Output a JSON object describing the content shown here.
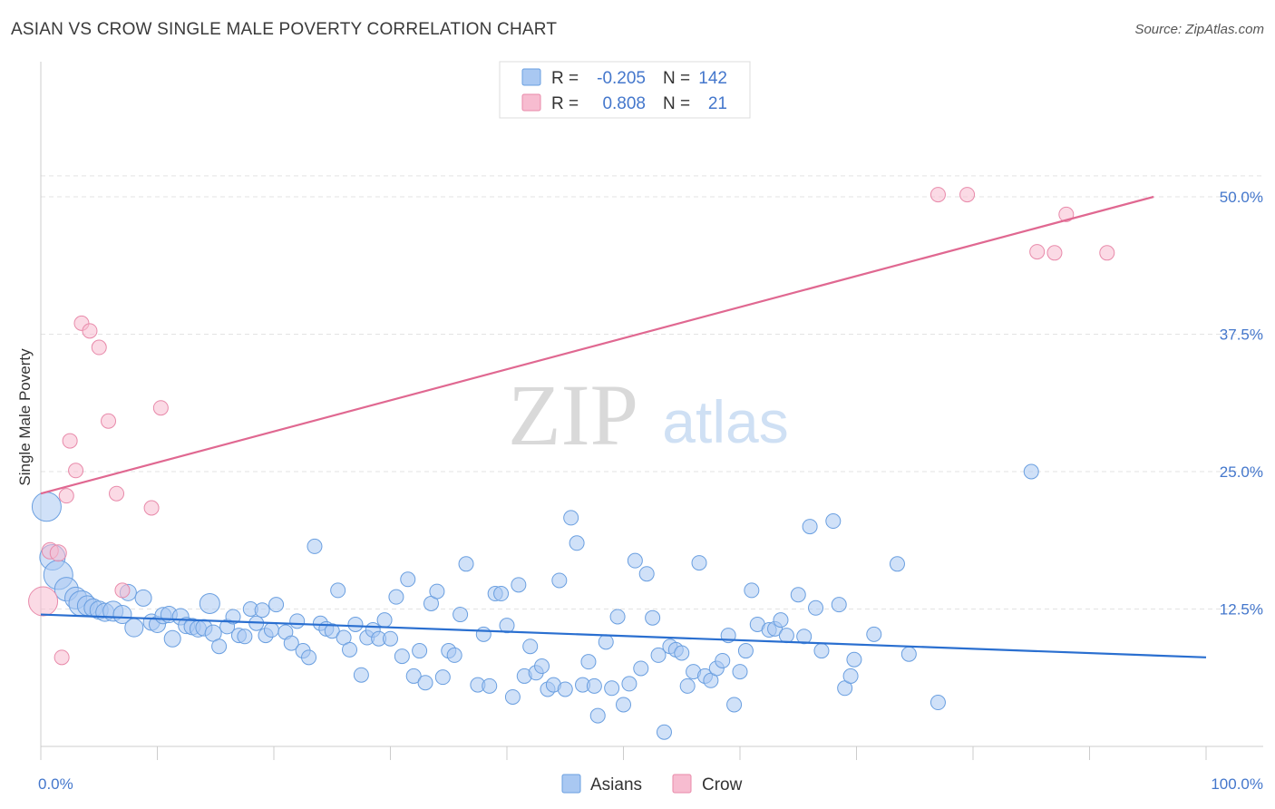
{
  "header": {
    "title": "ASIAN VS CROW SINGLE MALE POVERTY CORRELATION CHART",
    "source": "Source: ZipAtlas.com"
  },
  "watermark": {
    "zip": "ZIP",
    "atlas": "atlas"
  },
  "colors": {
    "asian_fill": "#a9c8f2",
    "asian_stroke": "#6a9fe0",
    "asian_line": "#2a6fd0",
    "crow_fill": "#f7bcd0",
    "crow_stroke": "#e88aaa",
    "crow_line": "#e06891",
    "tick_label": "#4477cc"
  },
  "chart_data": {
    "type": "scatter",
    "ylabel": "Single Male Poverty",
    "xlim": [
      0,
      100
    ],
    "ylim": [
      0,
      52
    ],
    "x_tick_labels": [
      "0.0%",
      "100.0%"
    ],
    "y_ticks": [
      12.5,
      25.0,
      37.5,
      50.0
    ],
    "y_tick_labels": [
      "12.5%",
      "25.0%",
      "37.5%",
      "50.0%"
    ],
    "grid": "horizontal-dashed",
    "legend_top": [
      {
        "r_label": "R =",
        "r_value": "-0.205",
        "n_label": "N =",
        "n_value": "142"
      },
      {
        "r_label": "R =",
        "r_value": "0.808",
        "n_label": "N =",
        "n_value": "21"
      }
    ],
    "legend_bottom": [
      "Asians",
      "Crow"
    ],
    "series": [
      {
        "name": "Asians",
        "trend": {
          "x": [
            0,
            100
          ],
          "y": [
            12.0,
            8.1
          ]
        },
        "points": [
          [
            0.5,
            21.8,
            16
          ],
          [
            1.0,
            17.2,
            14
          ],
          [
            1.5,
            15.6,
            16
          ],
          [
            2.2,
            14.3,
            13
          ],
          [
            3.0,
            13.5,
            12
          ],
          [
            3.5,
            13.0,
            14
          ],
          [
            4.0,
            12.8,
            11
          ],
          [
            4.5,
            12.6,
            10
          ],
          [
            5.0,
            12.4,
            10
          ],
          [
            5.5,
            12.2,
            10
          ],
          [
            6.2,
            12.3,
            11
          ],
          [
            7.0,
            12.0,
            10
          ],
          [
            7.5,
            14.0,
            9
          ],
          [
            8.0,
            10.8,
            10
          ],
          [
            8.8,
            13.5,
            9
          ],
          [
            9.5,
            11.3,
            9
          ],
          [
            10.0,
            11.1,
            9
          ],
          [
            10.5,
            11.9,
            9
          ],
          [
            11.0,
            12.0,
            9
          ],
          [
            11.3,
            9.8,
            9
          ],
          [
            12.0,
            11.8,
            9
          ],
          [
            12.5,
            11.0,
            9
          ],
          [
            13.0,
            10.9,
            9
          ],
          [
            13.5,
            10.7,
            9
          ],
          [
            14.0,
            10.8,
            9
          ],
          [
            14.5,
            13.0,
            11
          ],
          [
            14.8,
            10.3,
            9
          ],
          [
            15.3,
            9.1,
            8
          ],
          [
            16.0,
            10.9,
            8
          ],
          [
            16.5,
            11.8,
            8
          ],
          [
            17.0,
            10.1,
            8
          ],
          [
            17.5,
            10.0,
            8
          ],
          [
            18.0,
            12.5,
            8
          ],
          [
            18.5,
            11.2,
            8
          ],
          [
            19.0,
            12.4,
            8
          ],
          [
            19.3,
            10.1,
            8
          ],
          [
            19.8,
            10.6,
            8
          ],
          [
            20.2,
            12.9,
            8
          ],
          [
            21.0,
            10.4,
            8
          ],
          [
            21.5,
            9.4,
            8
          ],
          [
            22.0,
            11.4,
            8
          ],
          [
            22.5,
            8.7,
            8
          ],
          [
            23.0,
            8.1,
            8
          ],
          [
            23.5,
            18.2,
            8
          ],
          [
            24.0,
            11.2,
            8
          ],
          [
            24.5,
            10.7,
            8
          ],
          [
            25.0,
            10.5,
            8
          ],
          [
            25.5,
            14.2,
            8
          ],
          [
            26.0,
            9.9,
            8
          ],
          [
            26.5,
            8.8,
            8
          ],
          [
            27.0,
            11.1,
            8
          ],
          [
            27.5,
            6.5,
            8
          ],
          [
            28.0,
            9.9,
            8
          ],
          [
            28.5,
            10.6,
            8
          ],
          [
            29.0,
            9.8,
            8
          ],
          [
            29.5,
            11.5,
            8
          ],
          [
            30.0,
            9.8,
            8
          ],
          [
            30.5,
            13.6,
            8
          ],
          [
            31.0,
            8.2,
            8
          ],
          [
            31.5,
            15.2,
            8
          ],
          [
            32.0,
            6.4,
            8
          ],
          [
            32.5,
            8.7,
            8
          ],
          [
            33.0,
            5.8,
            8
          ],
          [
            33.5,
            13.0,
            8
          ],
          [
            34.0,
            14.1,
            8
          ],
          [
            34.5,
            6.3,
            8
          ],
          [
            35.0,
            8.7,
            8
          ],
          [
            35.5,
            8.3,
            8
          ],
          [
            36.0,
            12.0,
            8
          ],
          [
            36.5,
            16.6,
            8
          ],
          [
            37.5,
            5.6,
            8
          ],
          [
            38.0,
            10.2,
            8
          ],
          [
            38.5,
            5.5,
            8
          ],
          [
            39.0,
            13.9,
            8
          ],
          [
            39.5,
            13.9,
            8
          ],
          [
            40.0,
            11.0,
            8
          ],
          [
            40.5,
            4.5,
            8
          ],
          [
            41.0,
            14.7,
            8
          ],
          [
            41.5,
            6.4,
            8
          ],
          [
            42.0,
            9.1,
            8
          ],
          [
            42.5,
            6.7,
            8
          ],
          [
            43.0,
            7.3,
            8
          ],
          [
            43.5,
            5.2,
            8
          ],
          [
            44.0,
            5.6,
            8
          ],
          [
            44.5,
            15.1,
            8
          ],
          [
            45.0,
            5.2,
            8
          ],
          [
            45.5,
            20.8,
            8
          ],
          [
            46.0,
            18.5,
            8
          ],
          [
            46.5,
            5.6,
            8
          ],
          [
            47.0,
            7.7,
            8
          ],
          [
            47.5,
            5.5,
            8
          ],
          [
            47.8,
            2.8,
            8
          ],
          [
            48.5,
            9.5,
            8
          ],
          [
            49.0,
            5.3,
            8
          ],
          [
            49.5,
            11.8,
            8
          ],
          [
            50.0,
            3.8,
            8
          ],
          [
            50.5,
            5.7,
            8
          ],
          [
            51.0,
            16.9,
            8
          ],
          [
            51.5,
            7.1,
            8
          ],
          [
            52.0,
            15.7,
            8
          ],
          [
            52.5,
            11.7,
            8
          ],
          [
            53.0,
            8.3,
            8
          ],
          [
            53.5,
            1.3,
            8
          ],
          [
            54.0,
            9.1,
            8
          ],
          [
            54.5,
            8.8,
            8
          ],
          [
            55.0,
            8.5,
            8
          ],
          [
            55.5,
            5.5,
            8
          ],
          [
            56.0,
            6.8,
            8
          ],
          [
            56.5,
            16.7,
            8
          ],
          [
            57.0,
            6.4,
            8
          ],
          [
            57.5,
            6.0,
            8
          ],
          [
            58.0,
            7.1,
            8
          ],
          [
            58.5,
            7.8,
            8
          ],
          [
            59.0,
            10.1,
            8
          ],
          [
            59.5,
            3.8,
            8
          ],
          [
            60.0,
            6.8,
            8
          ],
          [
            60.5,
            8.7,
            8
          ],
          [
            61.0,
            14.2,
            8
          ],
          [
            61.5,
            11.1,
            8
          ],
          [
            62.5,
            10.6,
            8
          ],
          [
            63.0,
            10.7,
            8
          ],
          [
            63.5,
            11.5,
            8
          ],
          [
            64.0,
            10.1,
            8
          ],
          [
            65.0,
            13.8,
            8
          ],
          [
            65.5,
            10.0,
            8
          ],
          [
            66.0,
            20.0,
            8
          ],
          [
            66.5,
            12.6,
            8
          ],
          [
            67.0,
            8.7,
            8
          ],
          [
            68.0,
            20.5,
            8
          ],
          [
            68.5,
            12.9,
            8
          ],
          [
            69.0,
            5.3,
            8
          ],
          [
            69.5,
            6.4,
            8
          ],
          [
            69.8,
            7.9,
            8
          ],
          [
            71.5,
            10.2,
            8
          ],
          [
            73.5,
            16.6,
            8
          ],
          [
            74.5,
            8.4,
            8
          ],
          [
            77.0,
            4.0,
            8
          ],
          [
            85.0,
            25.0,
            8
          ]
        ]
      },
      {
        "name": "Crow",
        "trend": {
          "x": [
            0,
            95.5
          ],
          "y": [
            23.0,
            50.0
          ]
        },
        "points": [
          [
            0.2,
            13.2,
            16
          ],
          [
            0.8,
            17.8,
            9
          ],
          [
            1.5,
            17.6,
            9
          ],
          [
            1.8,
            8.1,
            8
          ],
          [
            2.2,
            22.8,
            8
          ],
          [
            2.5,
            27.8,
            8
          ],
          [
            3.0,
            25.1,
            8
          ],
          [
            3.5,
            38.5,
            8
          ],
          [
            4.2,
            37.8,
            8
          ],
          [
            5.0,
            36.3,
            8
          ],
          [
            5.8,
            29.6,
            8
          ],
          [
            6.5,
            23.0,
            8
          ],
          [
            7.0,
            14.2,
            8
          ],
          [
            9.5,
            21.7,
            8
          ],
          [
            10.3,
            30.8,
            8
          ],
          [
            77.0,
            50.2,
            8
          ],
          [
            79.5,
            50.2,
            8
          ],
          [
            85.5,
            45.0,
            8
          ],
          [
            87.0,
            44.9,
            8
          ],
          [
            88.0,
            48.4,
            8
          ],
          [
            91.5,
            44.9,
            8
          ]
        ]
      }
    ]
  }
}
